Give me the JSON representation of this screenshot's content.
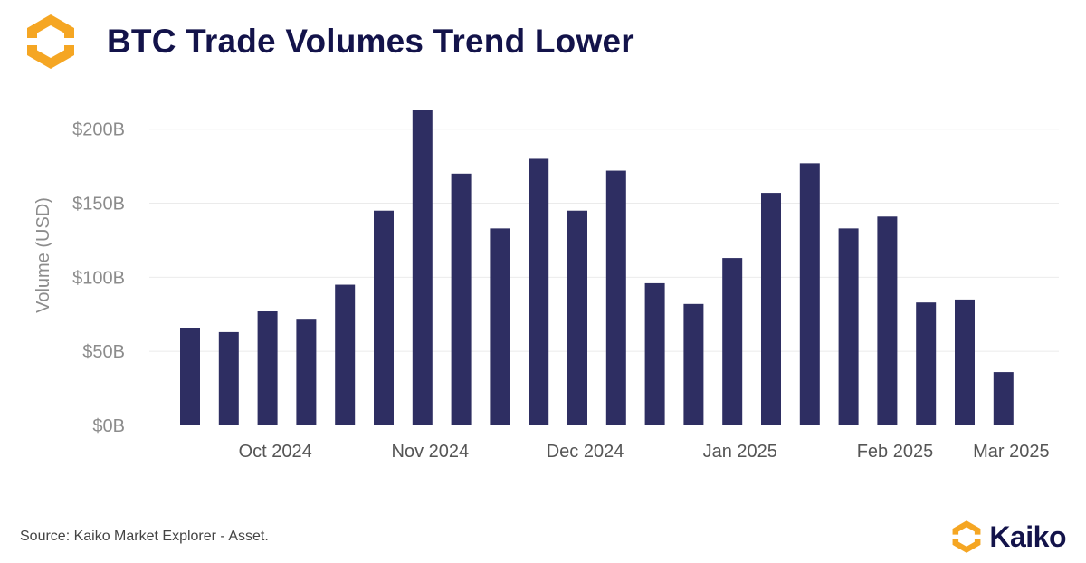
{
  "header": {
    "title": "BTC Trade Volumes Trend Lower",
    "logo_icon": "kaiko-hexagon-logo-icon"
  },
  "chart_data": {
    "type": "bar",
    "title": "BTC Trade Volumes Trend Lower",
    "xlabel": "",
    "ylabel": "Volume (USD)",
    "ylim": [
      0,
      220
    ],
    "yticks": [
      0,
      50,
      100,
      150,
      200
    ],
    "ytick_labels": [
      "$0B",
      "$50B",
      "$100B",
      "$150B",
      "$200B"
    ],
    "grid": true,
    "bar_color": "#2e2e62",
    "week_index": [
      1,
      2,
      3,
      4,
      5,
      6,
      7,
      8,
      9,
      10,
      11,
      12,
      13,
      14,
      15,
      16,
      17,
      18,
      19,
      20,
      21,
      22
    ],
    "values": [
      66,
      63,
      77,
      72,
      95,
      145,
      213,
      170,
      133,
      180,
      145,
      172,
      96,
      82,
      113,
      157,
      177,
      133,
      141,
      83,
      85,
      36
    ],
    "x_ticks": [
      {
        "label": "Oct 2024",
        "at": 3.2
      },
      {
        "label": "Nov 2024",
        "at": 7.2
      },
      {
        "label": "Dec 2024",
        "at": 11.2
      },
      {
        "label": "Jan 2025",
        "at": 15.2
      },
      {
        "label": "Feb 2025",
        "at": 19.2
      },
      {
        "label": "Mar 2025",
        "at": 22.2
      }
    ]
  },
  "footer": {
    "source": "Source: Kaiko Market Explorer - Asset.",
    "brand_name": "Kaiko",
    "brand_icon": "kaiko-hexagon-logo-icon"
  }
}
